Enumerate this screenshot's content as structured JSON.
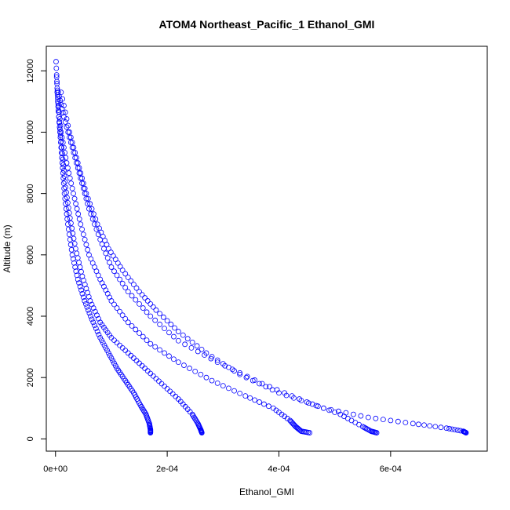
{
  "chart_data": {
    "type": "scatter",
    "title": "ATOM4 Northeast_Pacific_1 Ethanol_GMI",
    "xlabel": "Ethanol_GMI",
    "ylabel": "Altitude (m)",
    "xlim": [
      -1.65e-05,
      0.000773
    ],
    "ylim": [
      -400,
      12800
    ],
    "x_ticks": [
      0,
      0.0002,
      0.0004,
      0.0006
    ],
    "x_tick_labels": [
      "0e+00",
      "2e-04",
      "4e-04",
      "6e-04"
    ],
    "y_ticks": [
      0,
      2000,
      4000,
      6000,
      8000,
      10000,
      12000
    ],
    "y_tick_labels": [
      "0",
      "2000",
      "4000",
      "6000",
      "8000",
      "10000",
      "12000"
    ],
    "grid": false,
    "legend": "none",
    "marker": "open-circle",
    "color": "#0000ff",
    "series": [
      {
        "x": [
          1e-06,
          4e-06,
          8e-06,
          1.2e-05,
          1.6e-05,
          2.2e-05,
          3e-05,
          4e-05,
          5.2e-05,
          6.5e-05,
          8e-05,
          9.5e-05,
          0.00011,
          0.000125,
          0.00014,
          0.000152,
          0.000162,
          0.000168,
          0.00017,
          0.00017
        ],
        "y": [
          12300,
          11000,
          10000,
          9000,
          8000,
          7000,
          6000,
          5200,
          4500,
          3900,
          3300,
          2800,
          2300,
          1900,
          1500,
          1100,
          800,
          500,
          300,
          200
        ]
      },
      {
        "x": [
          2e-06,
          6e-06,
          1.2e-05,
          1.8e-05,
          2.6e-05,
          3.6e-05,
          4.8e-05,
          6.2e-05,
          8e-05,
          0.0001,
          0.00013,
          0.00016,
          0.00019,
          0.00022,
          0.000245,
          0.000255,
          0.00026,
          0.000262
        ],
        "y": [
          11800,
          10500,
          9300,
          8200,
          7200,
          6200,
          5300,
          4500,
          3800,
          3300,
          2800,
          2300,
          1800,
          1300,
          800,
          500,
          300,
          200
        ]
      },
      {
        "x": [
          3e-06,
          1e-05,
          2e-05,
          3.2e-05,
          4.5e-05,
          6e-05,
          8e-05,
          0.0001,
          0.00013,
          0.00017,
          0.00022,
          0.00028,
          0.00034,
          0.00039,
          0.00042,
          0.00043,
          0.00044,
          0.000455
        ],
        "y": [
          11300,
          10000,
          9000,
          8000,
          7000,
          6000,
          5200,
          4500,
          3800,
          3100,
          2500,
          1900,
          1400,
          1000,
          600,
          400,
          250,
          200
        ]
      },
      {
        "x": [
          5e-06,
          1.5e-05,
          3e-05,
          4.5e-05,
          6e-05,
          8e-05,
          0.0001,
          0.00013,
          0.00017,
          0.00022,
          0.00029,
          0.00037,
          0.00045,
          0.00051,
          0.00055,
          0.000565,
          0.000575
        ],
        "y": [
          11300,
          10500,
          9500,
          8500,
          7500,
          6500,
          5600,
          4800,
          4000,
          3200,
          2500,
          1800,
          1200,
          800,
          400,
          250,
          200
        ]
      },
      {
        "x": [
          1e-05,
          2.5e-05,
          4e-05,
          5.5e-05,
          7.5e-05,
          9.5e-05,
          0.00012,
          0.00015,
          0.00018,
          0.00022,
          0.00027,
          0.00033,
          0.0004,
          0.00048,
          0.00056,
          0.00064,
          0.0007,
          0.00073,
          0.000735
        ],
        "y": [
          11300,
          10000,
          9000,
          8000,
          7000,
          6200,
          5500,
          4800,
          4200,
          3500,
          2800,
          2100,
          1500,
          1000,
          700,
          500,
          350,
          250,
          200
        ]
      }
    ]
  }
}
